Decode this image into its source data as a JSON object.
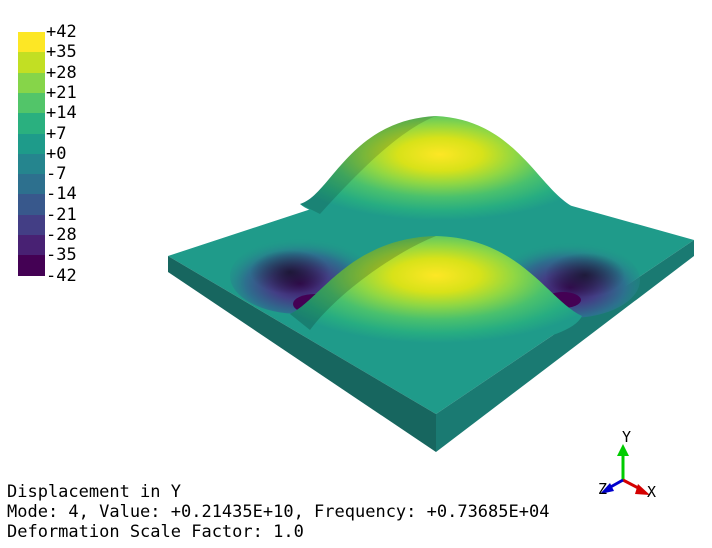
{
  "legend": {
    "labels": [
      "+42",
      "+35",
      "+28",
      "+21",
      "+14",
      "+7",
      "+0",
      "-7",
      "-14",
      "-21",
      "-28",
      "-35",
      "-42"
    ],
    "colors": [
      "#fde725",
      "#c2df23",
      "#86d549",
      "#52c569",
      "#2ab07f",
      "#1e9b8a",
      "#25858e",
      "#2d708e",
      "#38588c",
      "#433e85",
      "#482173",
      "#440154"
    ]
  },
  "info": {
    "line1": "Displacement in Y",
    "line2": "Mode: 4, Value: +0.21435E+10, Frequency: +0.73685E+04",
    "line3": "Deformation Scale Factor: 1.0"
  },
  "axes": {
    "y_label": "Y",
    "x_label": "X",
    "z_label": "Z",
    "x_color": "#d40000",
    "y_color": "#00cc00",
    "z_color": "#0000cc"
  },
  "surface": {
    "top_color": "#1f9b8a",
    "side_left_color": "#17665f",
    "side_right_color": "#1a7a72",
    "peak_color": "#f2dd3a",
    "trough_color": "#3b0f5c"
  }
}
